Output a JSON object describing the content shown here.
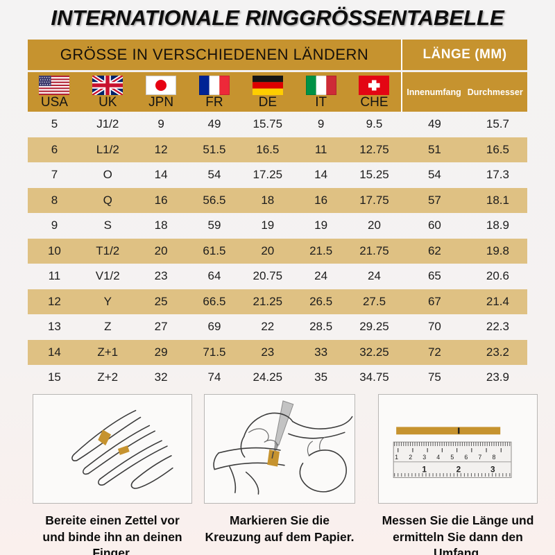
{
  "title": "INTERNATIONALE RINGGRÖSSENTABELLE",
  "colors": {
    "gold": "#C6932F",
    "row_tan": "#DFC183",
    "page_bg": "#F4F2F1"
  },
  "table": {
    "header_left": "GRÖSSE IN VERSCHIEDENEN LÄNDERN",
    "header_right": "LÄNGE (MM)",
    "countries": [
      {
        "code": "USA",
        "flag": "usa",
        "icon": "usa-flag-icon"
      },
      {
        "code": "UK",
        "flag": "uk",
        "icon": "uk-flag-icon"
      },
      {
        "code": "JPN",
        "flag": "jpn",
        "icon": "japan-flag-icon"
      },
      {
        "code": "FR",
        "flag": "fr",
        "icon": "france-flag-icon"
      },
      {
        "code": "DE",
        "flag": "de",
        "icon": "germany-flag-icon"
      },
      {
        "code": "IT",
        "flag": "it",
        "icon": "italy-flag-icon"
      },
      {
        "code": "CHE",
        "flag": "che",
        "icon": "switzerland-flag-icon"
      }
    ],
    "mm_columns": [
      "Innenumfang",
      "Durchmesser"
    ]
  },
  "chart_data": {
    "type": "table",
    "title": "INTERNATIONALE RINGGRÖSSENTABELLE",
    "columns": [
      "USA",
      "UK",
      "JPN",
      "FR",
      "DE",
      "IT",
      "CHE",
      "Innenumfang",
      "Durchmesser"
    ],
    "rows": [
      [
        "5",
        "J1/2",
        "9",
        "49",
        "15.75",
        "9",
        "9.5",
        "49",
        "15.7"
      ],
      [
        "6",
        "L1/2",
        "12",
        "51.5",
        "16.5",
        "11",
        "12.75",
        "51",
        "16.5"
      ],
      [
        "7",
        "O",
        "14",
        "54",
        "17.25",
        "14",
        "15.25",
        "54",
        "17.3"
      ],
      [
        "8",
        "Q",
        "16",
        "56.5",
        "18",
        "16",
        "17.75",
        "57",
        "18.1"
      ],
      [
        "9",
        "S",
        "18",
        "59",
        "19",
        "19",
        "20",
        "60",
        "18.9"
      ],
      [
        "10",
        "T1/2",
        "20",
        "61.5",
        "20",
        "21.5",
        "21.75",
        "62",
        "19.8"
      ],
      [
        "11",
        "V1/2",
        "23",
        "64",
        "20.75",
        "24",
        "24",
        "65",
        "20.6"
      ],
      [
        "12",
        "Y",
        "25",
        "66.5",
        "21.25",
        "26.5",
        "27.5",
        "67",
        "21.4"
      ],
      [
        "13",
        "Z",
        "27",
        "69",
        "22",
        "28.5",
        "29.25",
        "70",
        "22.3"
      ],
      [
        "14",
        "Z+1",
        "29",
        "71.5",
        "23",
        "33",
        "32.25",
        "72",
        "23.2"
      ],
      [
        "15",
        "Z+2",
        "32",
        "74",
        "24.25",
        "35",
        "34.75",
        "75",
        "23.9"
      ]
    ]
  },
  "steps": [
    {
      "caption": "Bereite einen Zettel vor und binde ihn an deinen Finger.",
      "icon": "hand-with-paper-strip-illustration"
    },
    {
      "caption": "Markieren Sie die Kreuzung auf dem Papier.",
      "icon": "mark-crossing-with-pen-illustration"
    },
    {
      "caption": "Messen Sie die Länge und ermitteln Sie dann den Umfang.",
      "icon": "ruler-measuring-illustration"
    }
  ],
  "ruler": {
    "cm_labels": [
      "1",
      "2",
      "3",
      "4",
      "5",
      "6",
      "7",
      "8"
    ],
    "inch_labels": [
      "1",
      "2",
      "3"
    ]
  }
}
